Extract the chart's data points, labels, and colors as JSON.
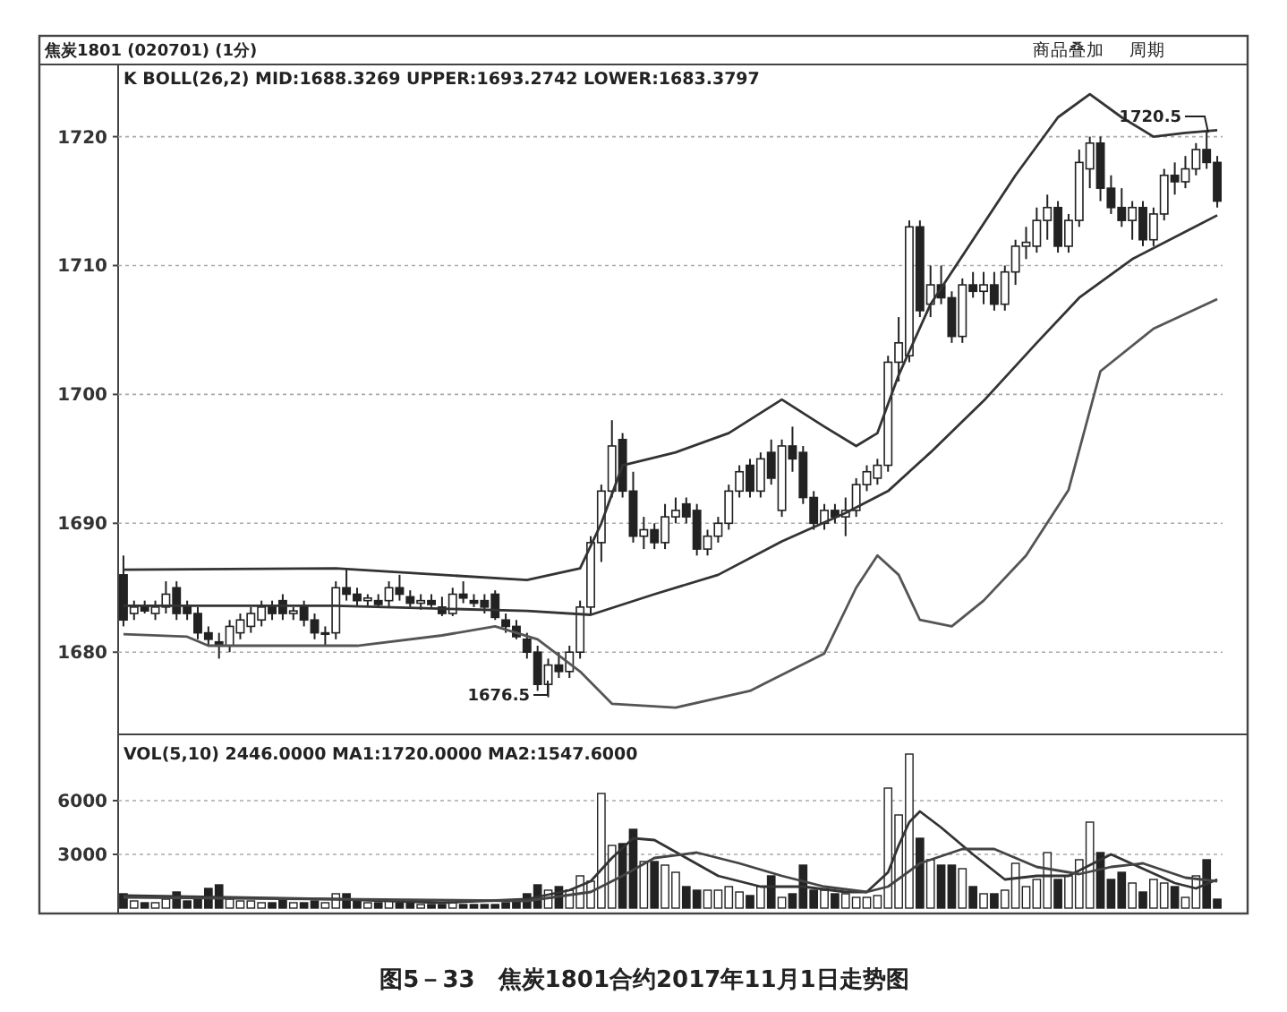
{
  "chart_data": [
    {
      "type": "candlestick",
      "title": "焦炭1801 (020701) (1分)",
      "subtitle": "K  BOLL(26,2) MID:1688.3269 UPPER:1693.2742 LOWER:1683.3797",
      "categories": [
        null,
        null,
        null,
        null,
        null,
        null,
        null,
        null,
        null,
        null,
        null,
        null,
        null,
        null,
        null,
        null,
        null,
        null,
        null,
        null,
        null,
        null,
        null,
        null,
        null,
        null,
        null,
        null,
        null,
        null,
        null,
        null,
        null,
        null,
        null,
        null,
        null,
        null,
        null,
        null,
        null,
        null,
        null,
        null,
        null,
        null,
        null,
        null,
        null,
        null,
        null,
        null,
        null,
        null,
        null,
        null,
        null,
        null,
        null,
        null,
        null,
        null,
        null,
        null,
        null,
        null,
        null,
        null,
        null,
        null,
        null,
        null,
        null,
        null,
        null,
        null,
        null,
        null,
        null,
        null,
        null,
        null,
        null,
        null,
        null,
        null,
        null,
        null,
        null,
        null,
        null,
        null,
        null,
        null,
        null,
        null,
        null,
        null,
        null,
        null,
        null,
        null,
        null,
        null
      ],
      "ohlc": [
        [
          1686,
          1687.5,
          1682,
          1682.5
        ],
        [
          1683,
          1684,
          1682.5,
          1683.5
        ],
        [
          1683.5,
          1684,
          1683,
          1683.2
        ],
        [
          1683,
          1684,
          1682.5,
          1683.5
        ],
        [
          1683.5,
          1685.5,
          1683,
          1684.5
        ],
        [
          1685,
          1685.5,
          1682.5,
          1683
        ],
        [
          1683.5,
          1684,
          1682.5,
          1683
        ],
        [
          1683,
          1683.5,
          1681,
          1681.5
        ],
        [
          1681.5,
          1682,
          1680.5,
          1681
        ],
        [
          1680.8,
          1681.5,
          1679.5,
          1680.5
        ],
        [
          1680.5,
          1682.5,
          1680,
          1682
        ],
        [
          1681.5,
          1683,
          1681,
          1682.5
        ],
        [
          1682,
          1683.5,
          1681.5,
          1683
        ],
        [
          1682.5,
          1684,
          1682,
          1683.5
        ],
        [
          1683.5,
          1684,
          1682.5,
          1683
        ],
        [
          1684,
          1684.5,
          1682.5,
          1683
        ],
        [
          1683,
          1683.5,
          1682.5,
          1683.2
        ],
        [
          1683.5,
          1684,
          1682,
          1682.5
        ],
        [
          1682.5,
          1683,
          1681,
          1681.5
        ],
        [
          1681.5,
          1682,
          1680.5,
          1681.5
        ],
        [
          1681.5,
          1685.5,
          1681,
          1685
        ],
        [
          1685,
          1686.5,
          1684,
          1684.5
        ],
        [
          1684.5,
          1685,
          1683.5,
          1684
        ],
        [
          1684,
          1684.5,
          1683.5,
          1684.2
        ],
        [
          1684,
          1684.5,
          1683.5,
          1683.7
        ],
        [
          1684,
          1685.5,
          1683.5,
          1685
        ],
        [
          1685,
          1686,
          1684,
          1684.5
        ],
        [
          1684.3,
          1684.8,
          1683.5,
          1683.8
        ],
        [
          1683.8,
          1684.5,
          1683.3,
          1684
        ],
        [
          1684,
          1684.5,
          1683.5,
          1683.7
        ],
        [
          1683.5,
          1684.3,
          1682.8,
          1683
        ],
        [
          1683,
          1685,
          1682.8,
          1684.5
        ],
        [
          1684.5,
          1685.5,
          1683.8,
          1684.2
        ],
        [
          1684,
          1684.5,
          1683.5,
          1683.8
        ],
        [
          1684,
          1684.5,
          1683,
          1683.5
        ],
        [
          1684.5,
          1684.8,
          1682.5,
          1682.7
        ],
        [
          1682.5,
          1683,
          1681.5,
          1682
        ],
        [
          1682,
          1682.5,
          1681,
          1681.2
        ],
        [
          1681,
          1681.5,
          1679.5,
          1680
        ],
        [
          1680,
          1680.5,
          1677,
          1677.5
        ],
        [
          1677.5,
          1679.5,
          1676.5,
          1679
        ],
        [
          1679,
          1680,
          1678,
          1678.5
        ],
        [
          1678.5,
          1680.5,
          1678,
          1680
        ],
        [
          1680,
          1684,
          1679.5,
          1683.5
        ],
        [
          1683.5,
          1689,
          1683,
          1688.5
        ],
        [
          1688.5,
          1693,
          1687,
          1692.5
        ],
        [
          1692.5,
          1698,
          1692,
          1696
        ],
        [
          1696.5,
          1697,
          1692,
          1692.5
        ],
        [
          1692.5,
          1694,
          1688.5,
          1689
        ],
        [
          1689,
          1690.5,
          1688,
          1689.5
        ],
        [
          1689.5,
          1690,
          1688,
          1688.5
        ],
        [
          1688.5,
          1691.5,
          1688,
          1690.5
        ],
        [
          1690.5,
          1692,
          1690,
          1691
        ],
        [
          1691.5,
          1692,
          1690,
          1690.5
        ],
        [
          1691,
          1691.5,
          1687.5,
          1688
        ],
        [
          1688,
          1689.5,
          1687.5,
          1689
        ],
        [
          1689,
          1690.5,
          1688.5,
          1690
        ],
        [
          1690,
          1693,
          1689.5,
          1692.5
        ],
        [
          1692.5,
          1694.5,
          1692,
          1694
        ],
        [
          1694.5,
          1695,
          1692,
          1692.5
        ],
        [
          1692.5,
          1695.5,
          1692,
          1695
        ],
        [
          1695.5,
          1696.5,
          1693,
          1693.5
        ],
        [
          1691,
          1696.5,
          1690.5,
          1696
        ],
        [
          1696,
          1697.5,
          1694,
          1695
        ],
        [
          1695.5,
          1696,
          1691.5,
          1692
        ],
        [
          1692,
          1692.5,
          1689.5,
          1690
        ],
        [
          1690,
          1691.5,
          1689.5,
          1691
        ],
        [
          1691,
          1691.5,
          1690,
          1690.5
        ],
        [
          1690.5,
          1692,
          1689,
          1691
        ],
        [
          1691,
          1693.5,
          1690.5,
          1693
        ],
        [
          1693,
          1694.5,
          1692.5,
          1694
        ],
        [
          1693.5,
          1695,
          1693,
          1694.5
        ],
        [
          1694.5,
          1703,
          1694,
          1702.5
        ],
        [
          1702.5,
          1706,
          1701,
          1704
        ],
        [
          1703,
          1713.5,
          1702.5,
          1713
        ],
        [
          1713,
          1713.5,
          1706,
          1706.5
        ],
        [
          1707,
          1710,
          1706,
          1708.5
        ],
        [
          1708.5,
          1710,
          1707,
          1707.5
        ],
        [
          1707.5,
          1708,
          1704,
          1704.5
        ],
        [
          1704.5,
          1709,
          1704,
          1708.5
        ],
        [
          1708.5,
          1709.5,
          1707.5,
          1708
        ],
        [
          1708,
          1709.5,
          1707,
          1708.5
        ],
        [
          1708.5,
          1709.5,
          1706.5,
          1707
        ],
        [
          1707,
          1710,
          1706.5,
          1709.5
        ],
        [
          1709.5,
          1712,
          1708.5,
          1711.5
        ],
        [
          1711.5,
          1713,
          1710.5,
          1711.8
        ],
        [
          1711.5,
          1714.5,
          1711,
          1713.5
        ],
        [
          1713.5,
          1715.5,
          1712,
          1714.5
        ],
        [
          1714.5,
          1715,
          1711,
          1711.5
        ],
        [
          1711.5,
          1714,
          1711,
          1713.5
        ],
        [
          1713.5,
          1719,
          1713,
          1718
        ],
        [
          1717.5,
          1720,
          1716,
          1719.5
        ],
        [
          1719.5,
          1720,
          1715,
          1716
        ],
        [
          1716,
          1717,
          1714,
          1714.5
        ],
        [
          1714.5,
          1716,
          1713,
          1713.5
        ],
        [
          1713.5,
          1715,
          1712,
          1714.5
        ],
        [
          1714.5,
          1715,
          1711.5,
          1712
        ],
        [
          1712,
          1714.5,
          1711.5,
          1714
        ],
        [
          1714,
          1717.5,
          1713.5,
          1717
        ],
        [
          1717,
          1718,
          1715.5,
          1716.5
        ],
        [
          1716.5,
          1718.5,
          1716,
          1717.5
        ],
        [
          1717.5,
          1719.5,
          1717,
          1719
        ],
        [
          1719,
          1720.5,
          1717.5,
          1718
        ],
        [
          1718,
          1718.5,
          1714.5,
          1715
        ]
      ],
      "series": [
        {
          "type": "line",
          "color": "#333333",
          "values": [
            1686.4,
            null,
            null,
            null,
            null,
            null,
            null,
            null,
            null,
            null,
            null,
            null,
            null,
            null,
            null,
            null,
            null,
            null,
            null,
            null,
            1686.5,
            null,
            null,
            null,
            null,
            null,
            null,
            null,
            null,
            null,
            1686.0,
            null,
            null,
            null,
            null,
            null,
            null,
            null,
            1685.6,
            null,
            null,
            null,
            null,
            1686.5,
            null,
            1690,
            null,
            1694.5,
            null,
            null,
            null,
            null,
            1695.5,
            null,
            null,
            null,
            null,
            1697,
            null,
            null,
            null,
            null,
            1699.6,
            null,
            null,
            null,
            1697.5,
            null,
            null,
            1696,
            null,
            1697,
            null,
            1701.5,
            null,
            null,
            1707,
            null,
            null,
            null,
            1712,
            null,
            null,
            null,
            1717,
            null,
            null,
            null,
            1721.5,
            null,
            null,
            1723.3,
            null,
            null,
            1721.5,
            null,
            null,
            1720,
            null,
            null,
            1720.3,
            null,
            null,
            1720.5
          ]
        },
        {
          "type": "line",
          "color": "#333333",
          "values": [
            1683.6,
            null,
            null,
            null,
            null,
            null,
            null,
            null,
            null,
            null,
            null,
            null,
            null,
            null,
            null,
            null,
            null,
            null,
            null,
            null,
            1683.6,
            null,
            null,
            null,
            null,
            null,
            null,
            null,
            null,
            null,
            null,
            null,
            null,
            null,
            null,
            null,
            null,
            null,
            1683.2,
            null,
            null,
            null,
            null,
            null,
            1682.9,
            null,
            null,
            null,
            null,
            null,
            1684.5,
            null,
            null,
            null,
            null,
            null,
            1686,
            null,
            null,
            null,
            null,
            null,
            1688.6,
            null,
            null,
            null,
            null,
            null,
            1690.8,
            null,
            null,
            null,
            1692.5,
            null,
            null,
            null,
            1695.5,
            null,
            null,
            null,
            null,
            1699.5,
            null,
            null,
            null,
            null,
            1704,
            null,
            null,
            null,
            1707.5,
            null,
            null,
            null,
            null,
            1710.5,
            null,
            null,
            null,
            null,
            null,
            null,
            null,
            1713.9
          ]
        },
        {
          "type": "line",
          "color": "#555555",
          "values": [
            1681.4,
            null,
            null,
            null,
            null,
            null,
            1681.2,
            null,
            1680.5,
            null,
            null,
            null,
            null,
            null,
            null,
            null,
            null,
            null,
            null,
            null,
            null,
            null,
            1680.5,
            null,
            null,
            null,
            null,
            null,
            null,
            null,
            1681.3,
            null,
            null,
            null,
            null,
            1682,
            null,
            null,
            null,
            1681,
            null,
            null,
            null,
            1678.5,
            null,
            null,
            1676,
            null,
            null,
            null,
            null,
            null,
            1675.7,
            null,
            null,
            null,
            null,
            null,
            null,
            1677,
            null,
            null,
            null,
            null,
            null,
            null,
            1679.9,
            null,
            null,
            1685,
            null,
            1687.5,
            null,
            1686,
            null,
            1682.5,
            null,
            null,
            1682,
            null,
            null,
            1684,
            null,
            null,
            null,
            1687.5,
            null,
            null,
            null,
            1692.6,
            null,
            null,
            1701.8,
            null,
            null,
            null,
            null,
            1705.1,
            null,
            null,
            null,
            null,
            null,
            1707.4
          ]
        }
      ],
      "ylim": [
        1673.9,
        1725.6
      ],
      "yticks": [
        1680,
        1690,
        1700,
        1710,
        1720
      ],
      "grid": "y",
      "annotations": [
        "1676.5",
        "1720.5",
        "商品叠加",
        "周期",
        "图5－33　焦炭1801合约2017年11月1日走势图"
      ]
    },
    {
      "type": "bar",
      "title": "VOL(5,10) 2446.0000 MA1:1720.0000 MA2:1547.6000",
      "categories": [
        null,
        null,
        null,
        null,
        null,
        null,
        null,
        null,
        null,
        null,
        null,
        null,
        null,
        null,
        null,
        null,
        null,
        null,
        null,
        null,
        null,
        null,
        null,
        null,
        null,
        null,
        null,
        null,
        null,
        null,
        null,
        null,
        null,
        null,
        null,
        null,
        null,
        null,
        null,
        null,
        null,
        null,
        null,
        null,
        null,
        null,
        null,
        null,
        null,
        null,
        null,
        null,
        null,
        null,
        null,
        null,
        null,
        null,
        null,
        null,
        null,
        null,
        null,
        null,
        null,
        null,
        null,
        null,
        null,
        null,
        null,
        null,
        null,
        null,
        null,
        null,
        null,
        null,
        null,
        null,
        null,
        null,
        null,
        null,
        null,
        null,
        null,
        null,
        null,
        null,
        null,
        null,
        null,
        null,
        null,
        null,
        null,
        null,
        null,
        null,
        null,
        null,
        null,
        null
      ],
      "values": [
        800,
        400,
        300,
        300,
        500,
        900,
        400,
        600,
        1100,
        1300,
        500,
        400,
        400,
        300,
        300,
        500,
        300,
        300,
        400,
        300,
        800,
        800,
        400,
        300,
        300,
        400,
        300,
        300,
        200,
        200,
        200,
        300,
        200,
        200,
        200,
        200,
        300,
        400,
        800,
        1300,
        1000,
        1200,
        1000,
        1800,
        1500,
        6400,
        3500,
        3600,
        4400,
        2600,
        2600,
        2400,
        2000,
        1200,
        1000,
        1000,
        1000,
        1200,
        900,
        700,
        1200,
        1800,
        600,
        800,
        2400,
        1000,
        1000,
        800,
        800,
        600,
        600,
        700,
        6700,
        5200,
        8600,
        3900,
        2700,
        2400,
        2400,
        2200,
        1200,
        800,
        800,
        1000,
        2500,
        1200,
        1600,
        3100,
        1600,
        1800,
        2700,
        4800,
        3100,
        1600,
        2000,
        1400,
        900,
        1600,
        1400,
        1200,
        600,
        1800,
        2700,
        500
      ],
      "colors": [
        "#222222",
        "#ffffff",
        "#222222",
        "#ffffff",
        "#ffffff",
        "#222222",
        "#222222",
        "#222222",
        "#222222",
        "#222222",
        "#ffffff",
        "#ffffff",
        "#ffffff",
        "#ffffff",
        "#222222",
        "#222222",
        "#ffffff",
        "#222222",
        "#222222",
        "#ffffff",
        "#ffffff",
        "#222222",
        "#222222",
        "#ffffff",
        "#222222",
        "#ffffff",
        "#222222",
        "#222222",
        "#ffffff",
        "#222222",
        "#222222",
        "#ffffff",
        "#222222",
        "#222222",
        "#222222",
        "#222222",
        "#222222",
        "#222222",
        "#222222",
        "#222222",
        "#ffffff",
        "#222222",
        "#ffffff",
        "#ffffff",
        "#ffffff",
        "#ffffff",
        "#ffffff",
        "#222222",
        "#222222",
        "#ffffff",
        "#222222",
        "#ffffff",
        "#ffffff",
        "#222222",
        "#222222",
        "#ffffff",
        "#ffffff",
        "#ffffff",
        "#ffffff",
        "#222222",
        "#ffffff",
        "#222222",
        "#ffffff",
        "#222222",
        "#222222",
        "#222222",
        "#ffffff",
        "#222222",
        "#ffffff",
        "#ffffff",
        "#ffffff",
        "#ffffff",
        "#ffffff",
        "#ffffff",
        "#ffffff",
        "#222222",
        "#ffffff",
        "#222222",
        "#222222",
        "#ffffff",
        "#222222",
        "#ffffff",
        "#222222",
        "#ffffff",
        "#ffffff",
        "#ffffff",
        "#ffffff",
        "#ffffff",
        "#222222",
        "#ffffff",
        "#ffffff",
        "#ffffff",
        "#222222",
        "#222222",
        "#222222",
        "#ffffff",
        "#222222",
        "#ffffff",
        "#ffffff",
        "#222222",
        "#ffffff",
        "#ffffff",
        "#222222",
        "#222222"
      ],
      "series": [
        {
          "type": "line",
          "color": "#333333",
          "values": [
            700,
            null,
            null,
            null,
            null,
            null,
            null,
            null,
            null,
            null,
            600,
            null,
            null,
            null,
            null,
            null,
            null,
            null,
            null,
            null,
            500,
            null,
            null,
            null,
            null,
            null,
            null,
            null,
            null,
            null,
            300,
            null,
            null,
            null,
            null,
            null,
            null,
            null,
            500,
            null,
            null,
            null,
            1000,
            null,
            1500,
            null,
            2800,
            null,
            3900,
            null,
            3800,
            null,
            null,
            2800,
            null,
            null,
            1800,
            null,
            null,
            null,
            1200,
            null,
            null,
            null,
            1200,
            null,
            null,
            null,
            900,
            null,
            900,
            null,
            2000,
            3500,
            4800,
            5400,
            null,
            4500,
            null,
            null,
            3000,
            null,
            null,
            1600,
            null,
            null,
            1800,
            null,
            null,
            1800,
            null,
            2400,
            null,
            3000,
            null,
            null,
            2200,
            null,
            null,
            1400,
            null,
            1100,
            null,
            1600
          ]
        },
        {
          "type": "line",
          "color": "#444444",
          "values": [
            600,
            null,
            null,
            null,
            null,
            null,
            null,
            null,
            null,
            null,
            null,
            null,
            null,
            null,
            null,
            null,
            null,
            null,
            null,
            null,
            500,
            null,
            null,
            null,
            null,
            null,
            null,
            null,
            null,
            null,
            null,
            null,
            null,
            null,
            null,
            null,
            null,
            null,
            400,
            null,
            null,
            null,
            null,
            null,
            900,
            null,
            null,
            1800,
            null,
            null,
            2800,
            null,
            null,
            null,
            3100,
            null,
            null,
            null,
            2500,
            null,
            null,
            null,
            1800,
            null,
            null,
            null,
            1200,
            null,
            null,
            null,
            900,
            null,
            1200,
            null,
            null,
            2500,
            null,
            null,
            null,
            3300,
            null,
            null,
            3300,
            null,
            null,
            null,
            2300,
            null,
            null,
            null,
            1900,
            null,
            null,
            2300,
            null,
            null,
            2500,
            null,
            null,
            null,
            1700,
            null,
            null,
            1500
          ]
        }
      ],
      "ylim": [
        0,
        9500
      ],
      "yticks": [
        3000,
        6000
      ],
      "grid": "y"
    }
  ]
}
